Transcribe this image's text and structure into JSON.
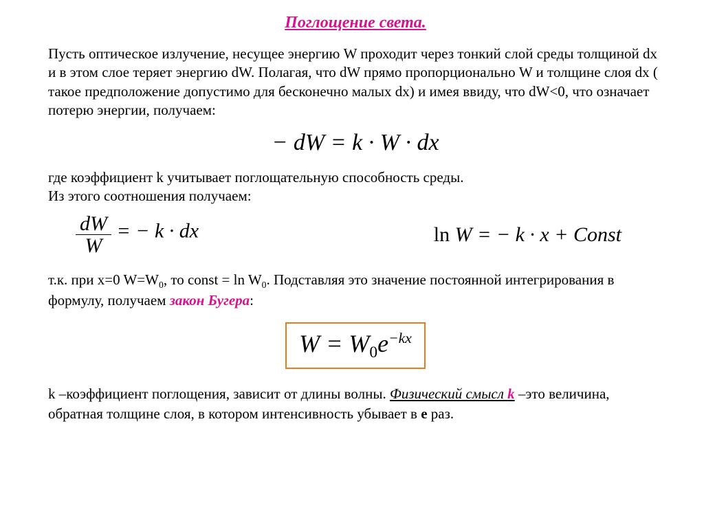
{
  "title": "Поглощение света.",
  "intro": "Пусть оптическое излучение, несущее энергию W проходит через тонкий слой среды толщиной dx и в этом слое теряет энергию dW. Полагая, что dW прямо пропорционально W и толщине слоя dx ( такое предположение допустимо для бесконечно малых dx) и имея ввиду, что dW<0, что означает потерю энергии, получаем:",
  "eq1": "− dW = k · W · dx",
  "para2a": "где коэффициент k учитывает поглощательную способность среды.",
  "para2b": "Из этого соотношения получаем:",
  "eq2_left_num": "dW",
  "eq2_left_den": "W",
  "eq2_left_rhs": " = − k · dx",
  "eq2_right": "ln W = − k · x + Const",
  "para3_pre": "т.к. при x=0 W=W",
  "para3_sub0": "0",
  "para3_mid": ", то const = ln W",
  "para3_sub0b": "0",
  "para3_post": ". Подставляя это значение постоянной интегрирования в формулу, получаем ",
  "para3_red": "закон Бугера",
  "para3_colon": ":",
  "boxed_W": "W = W",
  "boxed_sub0": "0",
  "boxed_e": "e",
  "boxed_exp": "−kx",
  "final_a": "k –коэффициент поглощения, зависит от длины волны. ",
  "final_ul": "Физический смысл ",
  "final_k": "k",
  "final_b": " –это величина, обратная толщине слоя, в котором интенсивность убывает в ",
  "final_e": "е",
  "final_c": " раз.",
  "colors": {
    "accent": "#d6138e",
    "box_border": "#e87c1a",
    "text": "#000000",
    "background": "#ffffff"
  },
  "fontsizes": {
    "title": 24,
    "body": 21,
    "eq_large": 34,
    "eq_medium": 30,
    "boxed": 36
  }
}
